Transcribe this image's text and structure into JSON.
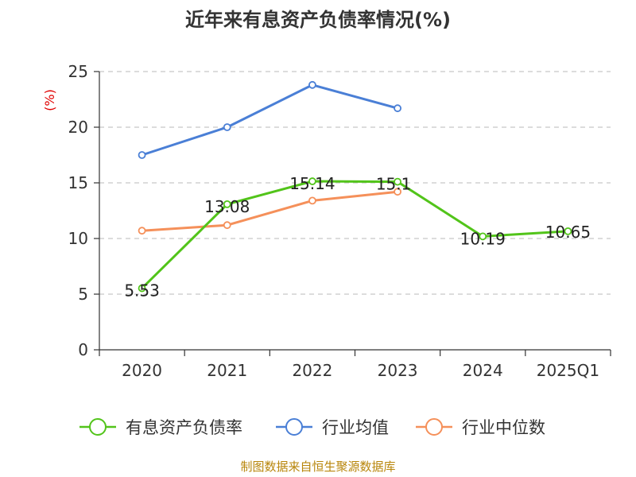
{
  "chart_data": {
    "type": "line",
    "title": "近年来有息资产负债率情况(%)",
    "y_unit": "(%)",
    "categories": [
      "2020",
      "2021",
      "2022",
      "2023",
      "2024",
      "2025Q1"
    ],
    "ylim": [
      0,
      25
    ],
    "yticks": [
      0,
      5,
      10,
      15,
      20,
      25
    ],
    "grid": true,
    "legend_position": "bottom",
    "series": [
      {
        "name": "有息资产负债率",
        "color": "#52c41a",
        "values": [
          5.53,
          13.08,
          15.14,
          15.1,
          10.19,
          10.65
        ],
        "data_labels": [
          "5.53",
          "13.08",
          "15.14",
          "15.1",
          "10.19",
          "10.65"
        ]
      },
      {
        "name": "行业均值",
        "color": "#4a7fd6",
        "values": [
          17.5,
          20.0,
          23.8,
          21.7,
          null,
          null
        ]
      },
      {
        "name": "行业中位数",
        "color": "#f5905a",
        "values": [
          10.7,
          11.2,
          13.4,
          14.2,
          null,
          null
        ]
      }
    ],
    "source": "制图数据来自恒生聚源数据库"
  }
}
